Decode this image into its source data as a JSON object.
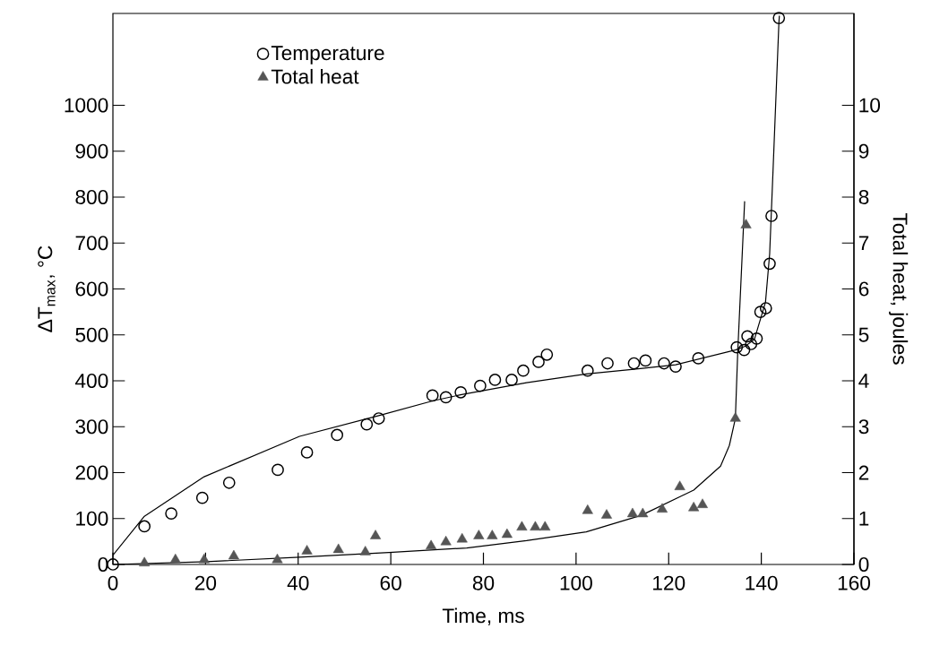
{
  "chart_data": {
    "type": "scatter",
    "xlabel": "Time, ms",
    "ylabel": "ΔT$_{max}$, °C",
    "y2label": "Total heat, joules",
    "xlim": [
      0,
      160
    ],
    "xticks": [
      0,
      20,
      40,
      60,
      80,
      100,
      120,
      140,
      160
    ],
    "ylim": [
      0,
      1200
    ],
    "yticks": [
      0,
      100,
      200,
      300,
      400,
      500,
      600,
      700,
      800,
      900,
      1000
    ],
    "y2lim": [
      0,
      12
    ],
    "y2ticks": [
      0,
      1,
      2,
      3,
      4,
      5,
      6,
      7,
      8,
      9,
      10
    ],
    "legend": "top left",
    "series": [
      {
        "name": "Temperature",
        "marker": "circle",
        "color": "#000000",
        "x": [
          0,
          6.8,
          12.6,
          19.3,
          25.1,
          35.6,
          41.9,
          48.4,
          54.8,
          57.4,
          69.0,
          71.9,
          75.1,
          79.3,
          82.5,
          86.1,
          88.6,
          91.9,
          93.7,
          102.5,
          106.8,
          112.5,
          115.0,
          119.0,
          121.5,
          126.4,
          134.7,
          136.3,
          137.0,
          137.8,
          139.0,
          139.8,
          141.0,
          141.8,
          142.2,
          143.8
        ],
        "values": [
          0,
          83,
          111,
          145,
          178,
          206,
          244,
          282,
          305,
          318,
          368,
          364,
          375,
          389,
          402,
          402,
          422,
          441,
          457,
          422,
          438,
          438,
          444,
          438,
          431,
          449,
          473,
          467,
          497,
          480,
          492,
          550,
          558,
          655,
          759,
          1190
        ]
      },
      {
        "name": "Total heat",
        "marker": "triangle",
        "color": "#555555",
        "axis": "y2",
        "x": [
          6.8,
          13.5,
          19.7,
          26.1,
          35.5,
          41.9,
          48.7,
          54.5,
          56.7,
          68.7,
          71.9,
          75.4,
          79.0,
          81.9,
          85.1,
          88.3,
          91.2,
          93.3,
          102.5,
          106.6,
          112.2,
          114.4,
          118.6,
          122.4,
          125.4,
          127.3,
          134.4,
          136.7
        ],
        "values": [
          0.03,
          0.1,
          0.1,
          0.18,
          0.1,
          0.29,
          0.32,
          0.27,
          0.62,
          0.4,
          0.49,
          0.55,
          0.62,
          0.62,
          0.65,
          0.81,
          0.81,
          0.81,
          1.17,
          1.07,
          1.1,
          1.1,
          1.2,
          1.69,
          1.23,
          1.3,
          3.18,
          7.39
        ]
      },
      {
        "type": "line",
        "color": "#000000",
        "x": [
          0,
          6.8,
          19.7,
          40.3,
          57.4,
          69,
          75.3,
          89.3,
          102.2,
          112.5,
          121.5,
          134.4,
          136.5,
          138.5,
          140.9,
          141.8,
          142.5,
          143.8,
          143.9
        ],
        "values": [
          20,
          105,
          191,
          279,
          324,
          356,
          370,
          396,
          415,
          425,
          435,
          467,
          475,
          490,
          571,
          676,
          850,
          1180,
          1195
        ]
      },
      {
        "type": "line",
        "color": "#000000",
        "axis": "y2",
        "x": [
          0,
          20.3,
          40.3,
          59.6,
          76.4,
          89.3,
          102.2,
          114.1,
          125.4,
          131.2,
          133.1,
          134.4,
          134.9,
          136.4
        ],
        "values": [
          0,
          0.06,
          0.16,
          0.26,
          0.36,
          0.52,
          0.71,
          1.07,
          1.62,
          2.14,
          2.59,
          3.18,
          4.6,
          7.91
        ]
      }
    ]
  }
}
